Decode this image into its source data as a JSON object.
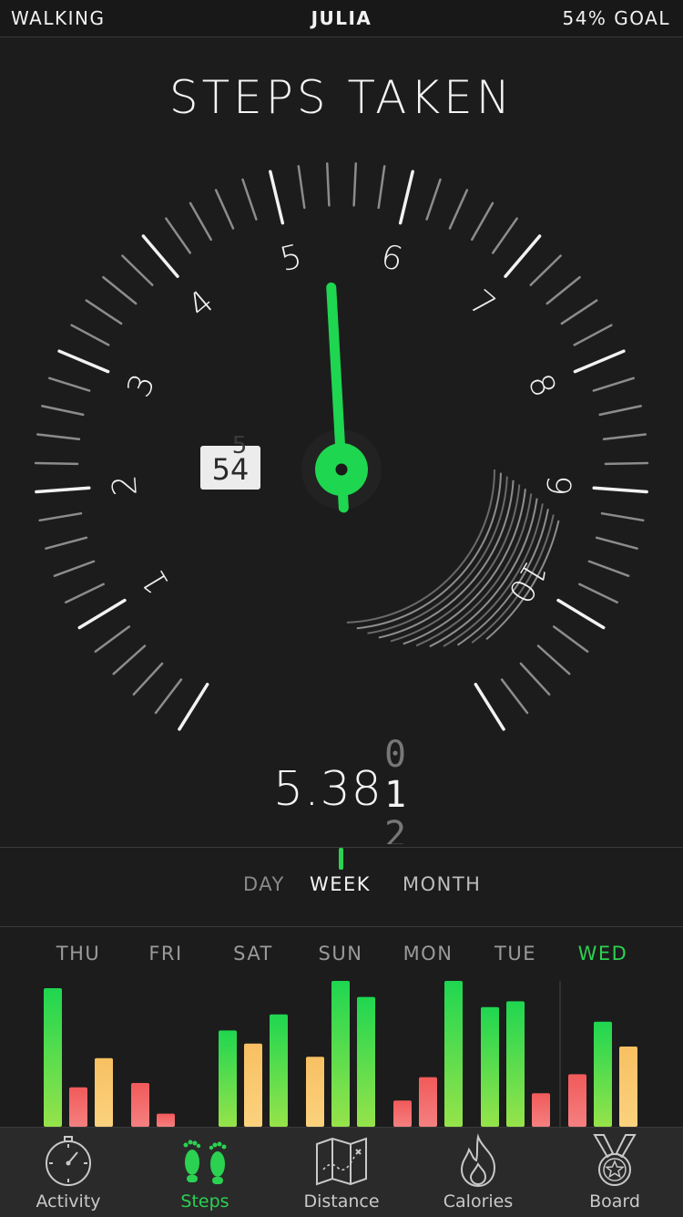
{
  "header": {
    "left": "WALKING",
    "center": "JULIA",
    "right": "54% GOAL"
  },
  "gauge": {
    "title": "STEPS TAKEN",
    "scale_labels": [
      "1",
      "2",
      "3",
      "4",
      "5",
      "6",
      "7",
      "8",
      "9",
      "10"
    ],
    "percent_badge": "54",
    "needle_value": 5.38,
    "accent_color": "#1fd650",
    "readout": "5.38",
    "roller_digits": [
      "0",
      "1",
      "2"
    ]
  },
  "period_tabs": {
    "day": "DAY",
    "week": "WEEK",
    "month": "MONTH",
    "selected": "week"
  },
  "chart_data": {
    "type": "bar",
    "categories": [
      "THU",
      "FRI",
      "SAT",
      "SUN",
      "MON",
      "TUE",
      "WED"
    ],
    "highlight_category": "WED",
    "bars_per_day_relative": [
      [
        0.95,
        0.27,
        0.47
      ],
      [
        0.3,
        0.09
      ],
      [
        0.66,
        0.57,
        0.77
      ],
      [
        0.48,
        1.0,
        0.89
      ],
      [
        0.18,
        0.34,
        1.0
      ],
      [
        0.82,
        0.86,
        0.23
      ],
      [
        0.36,
        0.72,
        0.55
      ]
    ],
    "colors": {
      "high": "#2ad351",
      "mid": "#f7c566",
      "low": "#ef6464"
    }
  },
  "tabbar": [
    {
      "label": "Activity",
      "icon": "stopwatch-icon"
    },
    {
      "label": "Steps",
      "icon": "footprints-icon"
    },
    {
      "label": "Distance",
      "icon": "map-icon"
    },
    {
      "label": "Calories",
      "icon": "flame-icon"
    },
    {
      "label": "Board",
      "icon": "medal-icon"
    }
  ],
  "active_tab": "Steps"
}
